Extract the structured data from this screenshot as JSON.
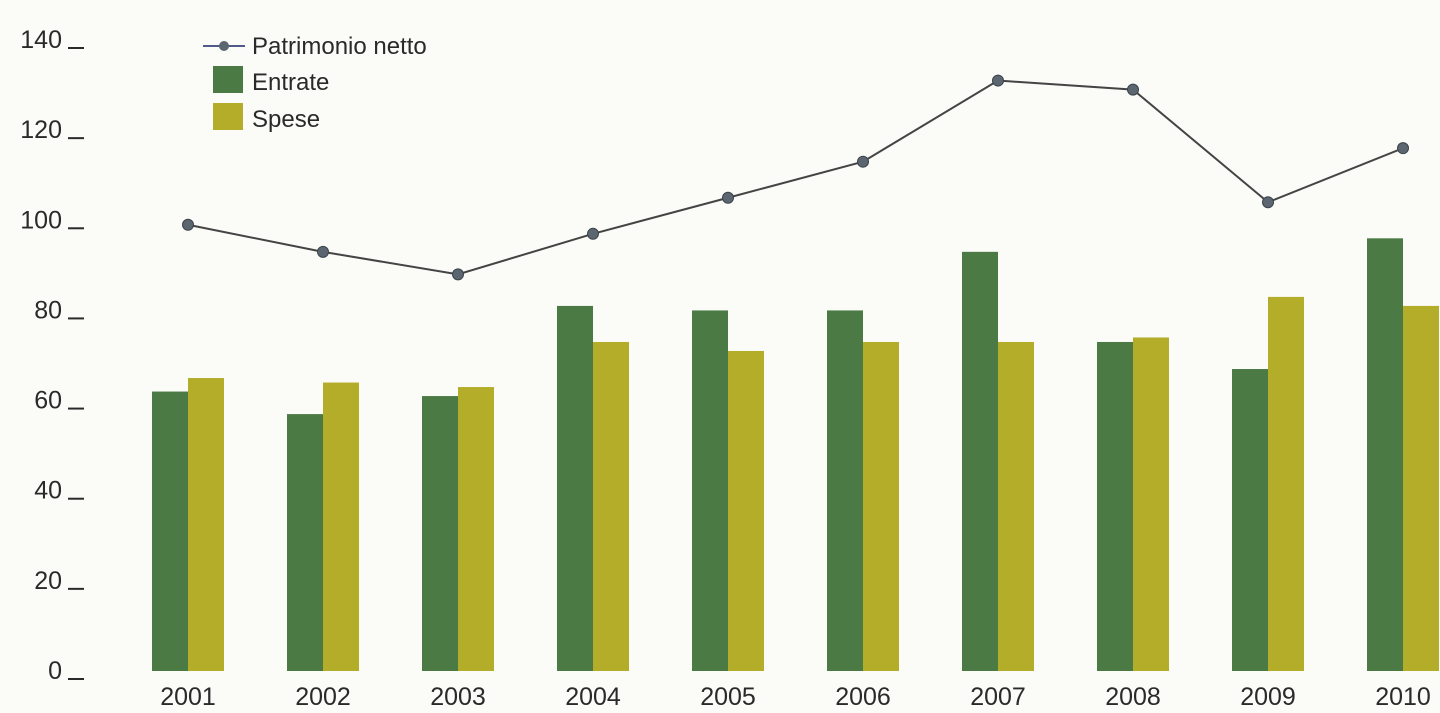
{
  "chart_data": {
    "type": "bar",
    "title": "",
    "xlabel": "",
    "ylabel": "",
    "ylim": [
      0,
      140
    ],
    "yticks": [
      0,
      20,
      40,
      60,
      80,
      100,
      120,
      140
    ],
    "ytick_labels": [
      "0",
      "20",
      "40",
      "60",
      "80",
      "100",
      "120",
      "140"
    ],
    "grid": false,
    "legend_position": "top-left",
    "categories": [
      "2001",
      "2002",
      "2003",
      "2004",
      "2005",
      "2006",
      "2007",
      "2008",
      "2009",
      "2010"
    ],
    "series": [
      {
        "name": "Patrimonio netto",
        "kind": "line",
        "color": "#444444",
        "marker_color": "#5b6670",
        "values": [
          99,
          93,
          88,
          97,
          105,
          113,
          131,
          129,
          104,
          116
        ]
      },
      {
        "name": "Entrate",
        "kind": "bar",
        "color": "#4b7a45",
        "values": [
          62,
          57,
          61,
          81,
          80,
          80,
          93,
          73,
          67,
          96
        ]
      },
      {
        "name": "Spese",
        "kind": "bar",
        "color": "#b3ad2a",
        "values": [
          65,
          64,
          63,
          73,
          71,
          73,
          73,
          74,
          83,
          81
        ]
      }
    ]
  }
}
